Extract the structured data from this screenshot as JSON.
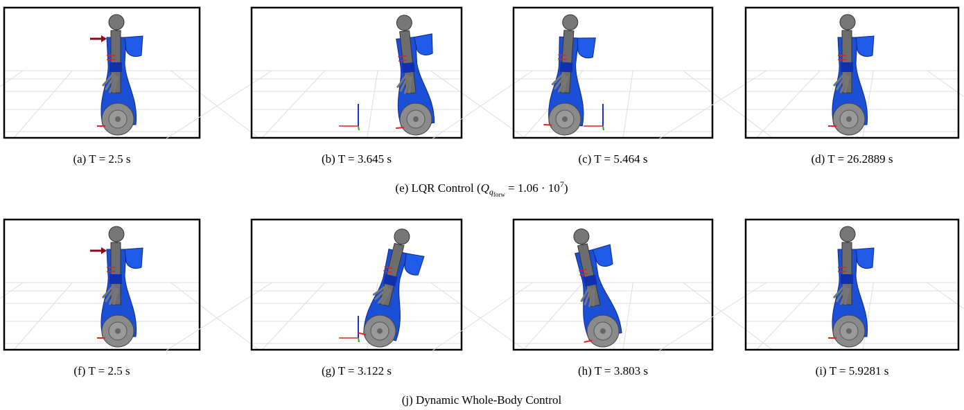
{
  "rows": [
    {
      "panels": [
        {
          "caption": "(a) T = 2.5 s"
        },
        {
          "caption": "(b) T = 3.645 s"
        },
        {
          "caption": "(c) T = 5.464 s"
        },
        {
          "caption": "(d) T = 26.2889 s"
        }
      ],
      "caption": {
        "text": "(e) LQR Control (",
        "math": {
          "base": "Q",
          "sub": "q",
          "subsub": "forw",
          "rest": " = 1.06 · 10",
          "sup": "7"
        },
        "close": ")"
      }
    },
    {
      "panels": [
        {
          "caption": "(f) T = 2.5 s"
        },
        {
          "caption": "(g) T = 3.122 s"
        },
        {
          "caption": "(h) T = 3.803 s"
        },
        {
          "caption": "(i) T = 5.9281 s"
        }
      ],
      "caption": {
        "text": "(j) Dynamic Whole-Body Control",
        "math": null,
        "close": null
      }
    }
  ]
}
